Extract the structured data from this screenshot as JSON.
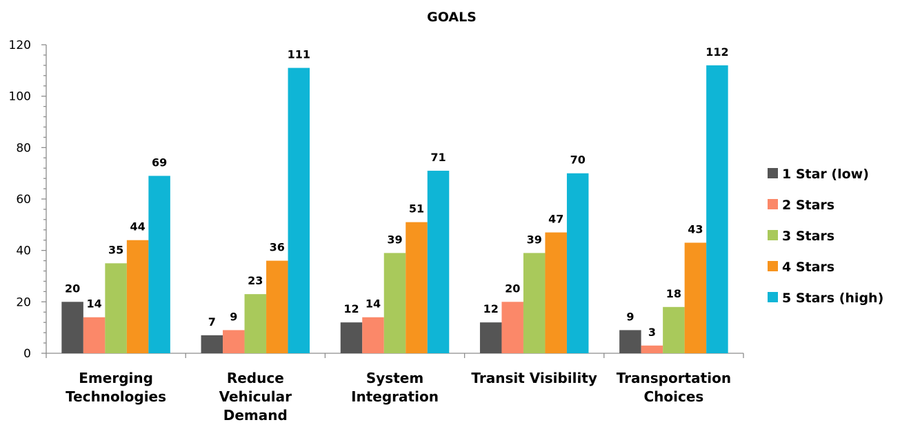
{
  "chart_data": {
    "type": "bar",
    "title": "GOALS",
    "xlabel": "",
    "ylabel": "",
    "categories": [
      [
        "Emerging",
        "Technologies"
      ],
      [
        "Reduce",
        "Vehicular",
        "Demand"
      ],
      [
        "System",
        "Integration"
      ],
      [
        "Transit Visibility"
      ],
      [
        "Transportation",
        "Choices"
      ]
    ],
    "series": [
      {
        "name": "1 Star (low)",
        "color": "#555555",
        "values": [
          20,
          7,
          12,
          12,
          9
        ]
      },
      {
        "name": "2 Stars",
        "color": "#fb8869",
        "values": [
          14,
          9,
          14,
          20,
          3
        ]
      },
      {
        "name": "3 Stars",
        "color": "#a9c95b",
        "values": [
          35,
          23,
          39,
          39,
          18
        ]
      },
      {
        "name": "4 Stars",
        "color": "#f7941e",
        "values": [
          44,
          36,
          51,
          47,
          43
        ]
      },
      {
        "name": "5 Stars (high)",
        "color": "#0fb5d6",
        "values": [
          69,
          111,
          71,
          70,
          112
        ]
      }
    ],
    "ylim": [
      0,
      120
    ],
    "yticks": [
      0,
      20,
      40,
      60,
      80,
      100,
      120
    ],
    "grid": false,
    "legend_position": "right",
    "data_labels": true
  }
}
